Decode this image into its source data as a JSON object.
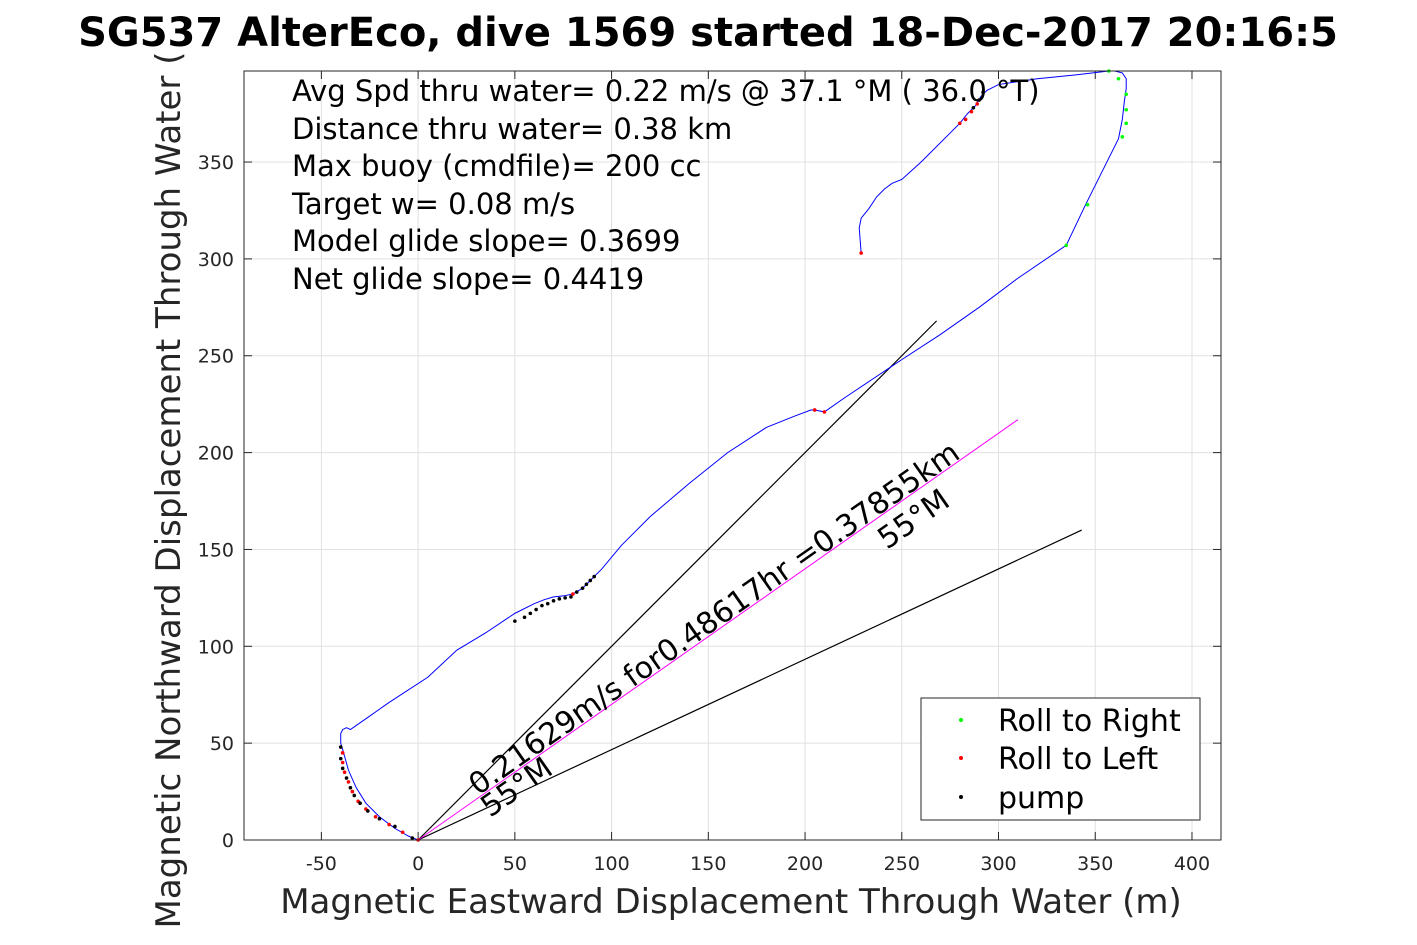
{
  "chart_data": {
    "type": "line",
    "title": "SG537 AlterEco, dive 1569 started 18-Dec-2017 20:16:5",
    "xlabel": "Magnetic Eastward Displacement Through Water (m)",
    "ylabel": "Magnetic Northward Displacement Through Water (",
    "xlim": [
      -90,
      415
    ],
    "ylim": [
      0,
      397
    ],
    "xticks": [
      -50,
      0,
      50,
      100,
      150,
      200,
      250,
      300,
      350,
      400
    ],
    "yticks": [
      0,
      50,
      100,
      150,
      200,
      250,
      300,
      350
    ],
    "xtick_labels": [
      "-50",
      "0",
      "50",
      "100",
      "150",
      "200",
      "250",
      "300",
      "350",
      "400"
    ],
    "ytick_labels": [
      "0",
      "50",
      "100",
      "150",
      "200",
      "250",
      "300",
      "350"
    ],
    "grid": true,
    "legend_position": "bottom-right",
    "stats": [
      "Avg Spd thru water=  0.22 m/s @  37.1 °M ( 36.0 °T)",
      "Distance thru water=  0.38 km",
      "Max buoy (cmdfile)= 200 cc",
      "Target w= 0.08 m/s",
      "Model glide slope= 0.3699",
      "Net glide slope= 0.4419"
    ],
    "series": [
      {
        "name": "track",
        "color": "#0000ff",
        "x": [
          0,
          -5,
          -12,
          -20,
          -27,
          -32,
          -36,
          -38.5,
          -40,
          -40,
          -39,
          -37,
          -35,
          -25,
          -15,
          5,
          20,
          35,
          50,
          60,
          65,
          70,
          75,
          80,
          85,
          88,
          90,
          95,
          105,
          120,
          140,
          160,
          180,
          195,
          203,
          205,
          210,
          220,
          235,
          250,
          270,
          290,
          310,
          335,
          345,
          355,
          362,
          364,
          365,
          366,
          366,
          364,
          360,
          357,
          340,
          320,
          300,
          294,
          291,
          288,
          284,
          280,
          276,
          260,
          250,
          245,
          241,
          237,
          233,
          229,
          228,
          229
        ],
        "y": [
          0,
          2,
          6,
          12,
          19,
          27,
          36,
          45,
          50,
          55,
          57,
          58,
          57,
          64,
          71,
          84,
          98,
          107,
          117,
          122,
          124,
          125.5,
          126,
          127,
          130,
          133,
          135,
          140,
          152,
          167,
          184,
          200,
          213,
          219,
          222,
          222,
          221,
          228,
          238,
          248,
          261,
          275,
          290,
          307,
          328,
          348,
          362,
          372,
          381,
          388,
          393,
          396,
          397,
          397,
          395,
          393,
          390,
          387,
          384,
          379,
          375,
          370,
          366,
          350,
          341,
          339,
          336,
          332,
          326,
          321,
          316,
          303
        ]
      },
      {
        "name": "net-glide-direction",
        "color": "#ff00ff",
        "x": [
          0,
          310
        ],
        "y": [
          0,
          217
        ]
      }
    ],
    "reference_lines": [
      {
        "x": [
          0,
          268
        ],
        "y": [
          0,
          268
        ],
        "color": "#000000"
      },
      {
        "x": [
          0,
          343
        ],
        "y": [
          0,
          160
        ],
        "color": "#000000"
      }
    ],
    "markers": {
      "roll_right": {
        "name": "Roll to Right",
        "color": "#00ff00",
        "points": [
          [
            357,
            397
          ],
          [
            362,
            393
          ],
          [
            366,
            385
          ],
          [
            366,
            377
          ],
          [
            366,
            370
          ],
          [
            364,
            363
          ],
          [
            346,
            328
          ],
          [
            335,
            307
          ]
        ]
      },
      "roll_left": {
        "name": "Roll to Left",
        "color": "#ff0000",
        "points": [
          [
            -39,
            45
          ],
          [
            -39,
            40
          ],
          [
            -38,
            35
          ],
          [
            -36,
            30
          ],
          [
            -34,
            25
          ],
          [
            -31,
            20
          ],
          [
            -27,
            16
          ],
          [
            -22,
            12
          ],
          [
            -15,
            8
          ],
          [
            -8,
            4
          ],
          [
            0,
            0
          ],
          [
            80,
            127
          ],
          [
            205,
            222
          ],
          [
            210,
            221
          ],
          [
            229,
            303
          ],
          [
            280,
            370
          ],
          [
            283,
            372
          ],
          [
            286,
            376
          ],
          [
            289,
            380
          ]
        ]
      },
      "pump": {
        "name": "pump",
        "color": "#000000",
        "points": [
          [
            55,
            115
          ],
          [
            58,
            117
          ],
          [
            61,
            119
          ],
          [
            64,
            121
          ],
          [
            67,
            122
          ],
          [
            70,
            123.5
          ],
          [
            73,
            124.5
          ],
          [
            76,
            125
          ],
          [
            79,
            125.5
          ],
          [
            82,
            128
          ],
          [
            85,
            130
          ],
          [
            87,
            132
          ],
          [
            89,
            134
          ],
          [
            91,
            136
          ],
          [
            -40,
            48
          ],
          [
            -40,
            42
          ],
          [
            -39,
            37
          ],
          [
            -37,
            32
          ],
          [
            -35,
            27
          ],
          [
            -33,
            23
          ],
          [
            -30,
            19
          ],
          [
            -26,
            15
          ],
          [
            -20,
            11
          ],
          [
            -12,
            7
          ],
          [
            -3,
            1
          ],
          [
            50,
            113
          ],
          [
            287,
            378
          ],
          [
            290,
            382
          ],
          [
            292,
            386
          ]
        ]
      }
    },
    "annotations": {
      "rate_text": "0.21629m/s for0.48617hr =0.37855km",
      "heading_a": "55°M",
      "heading_b": "55°M"
    }
  }
}
